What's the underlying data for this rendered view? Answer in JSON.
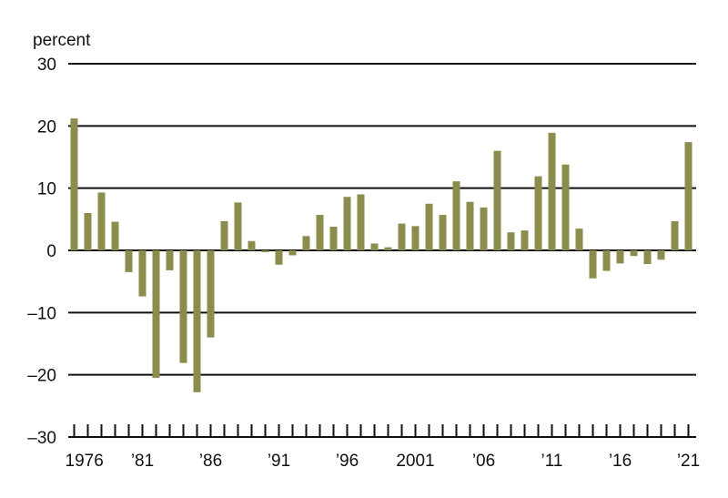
{
  "chart_data": {
    "type": "bar",
    "ylabel": "percent",
    "ylim": [
      -30,
      30
    ],
    "yticks": [
      {
        "value": 30,
        "label": "30"
      },
      {
        "value": 20,
        "label": "20"
      },
      {
        "value": 10,
        "label": "10"
      },
      {
        "value": 0,
        "label": "0"
      },
      {
        "value": -10,
        "label": "–10"
      },
      {
        "value": -20,
        "label": "–20"
      },
      {
        "value": -30,
        "label": "–30"
      }
    ],
    "grid": true,
    "xlabels": [
      {
        "year": 1976,
        "label": "1976"
      },
      {
        "year": 1981,
        "label": "’81"
      },
      {
        "year": 1986,
        "label": "’86"
      },
      {
        "year": 1991,
        "label": "’91"
      },
      {
        "year": 1996,
        "label": "’96"
      },
      {
        "year": 2001,
        "label": "2001"
      },
      {
        "year": 2006,
        "label": "’06"
      },
      {
        "year": 2011,
        "label": "’11"
      },
      {
        "year": 2016,
        "label": "’16"
      },
      {
        "year": 2021,
        "label": "’21"
      }
    ],
    "bar_color": "#8b8c4d",
    "categories": [
      1976,
      1977,
      1978,
      1979,
      1980,
      1981,
      1982,
      1983,
      1984,
      1985,
      1986,
      1987,
      1988,
      1989,
      1990,
      1991,
      1992,
      1993,
      1994,
      1995,
      1996,
      1997,
      1998,
      1999,
      2000,
      2001,
      2002,
      2003,
      2004,
      2005,
      2006,
      2007,
      2008,
      2009,
      2010,
      2011,
      2012,
      2013,
      2014,
      2015,
      2016,
      2017,
      2018,
      2019,
      2020,
      2021
    ],
    "values": [
      21.2,
      6.0,
      9.3,
      4.6,
      -3.5,
      -7.4,
      -20.5,
      -3.2,
      -18.1,
      -22.8,
      -14.0,
      4.7,
      7.7,
      1.5,
      -0.3,
      -2.3,
      -0.8,
      2.3,
      5.7,
      3.8,
      8.6,
      9.0,
      1.1,
      0.5,
      4.3,
      3.9,
      7.5,
      5.7,
      11.1,
      7.8,
      6.9,
      16.0,
      2.9,
      3.2,
      11.9,
      18.9,
      13.8,
      3.5,
      -4.5,
      -3.3,
      -2.1,
      -0.9,
      -2.2,
      -1.5,
      4.7,
      17.4
    ]
  }
}
